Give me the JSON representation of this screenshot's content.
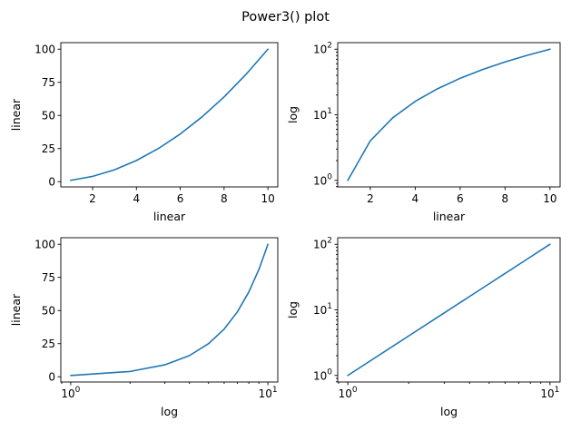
{
  "figure": {
    "title": "Power3() plot"
  },
  "chart_data": [
    {
      "type": "line",
      "xscale": "linear",
      "yscale": "linear",
      "xlabel": "linear",
      "ylabel": "linear",
      "x": [
        1,
        2,
        3,
        4,
        5,
        6,
        7,
        8,
        9,
        10
      ],
      "y": [
        1,
        4,
        9,
        16,
        25,
        36,
        49,
        64,
        81,
        100
      ],
      "color": "#1f77b4",
      "xlim": [
        0.55,
        10.45
      ],
      "ylim": [
        -3.95,
        104.95
      ],
      "xticks": [
        2,
        4,
        6,
        8,
        10
      ],
      "xtick_labels": [
        "2",
        "4",
        "6",
        "8",
        "10"
      ],
      "yticks": [
        0,
        25,
        50,
        75,
        100
      ],
      "ytick_labels": [
        "0",
        "25",
        "50",
        "75",
        "100"
      ]
    },
    {
      "type": "line",
      "xscale": "linear",
      "yscale": "log",
      "xlabel": "linear",
      "ylabel": "log",
      "x": [
        1,
        2,
        3,
        4,
        5,
        6,
        7,
        8,
        9,
        10
      ],
      "y": [
        1,
        4,
        9,
        16,
        25,
        36,
        49,
        64,
        81,
        100
      ],
      "color": "#1f77b4",
      "xlim": [
        0.55,
        10.45
      ],
      "ylim": [
        0.794,
        125.9
      ],
      "xticks": [
        2,
        4,
        6,
        8,
        10
      ],
      "xtick_labels": [
        "2",
        "4",
        "6",
        "8",
        "10"
      ],
      "yticks": [
        1,
        10,
        100
      ],
      "ytick_labels": [
        [
          "10",
          "0"
        ],
        [
          "10",
          "1"
        ],
        [
          "10",
          "2"
        ]
      ]
    },
    {
      "type": "line",
      "xscale": "log",
      "yscale": "linear",
      "xlabel": "log",
      "ylabel": "linear",
      "x": [
        1,
        2,
        3,
        4,
        5,
        6,
        7,
        8,
        9,
        10
      ],
      "y": [
        1,
        4,
        9,
        16,
        25,
        36,
        49,
        64,
        81,
        100
      ],
      "color": "#1f77b4",
      "xlim": [
        0.891,
        11.22
      ],
      "ylim": [
        -3.95,
        104.95
      ],
      "xticks": [
        1,
        10
      ],
      "xtick_labels": [
        [
          "10",
          "0"
        ],
        [
          "10",
          "1"
        ]
      ],
      "yticks": [
        0,
        25,
        50,
        75,
        100
      ],
      "ytick_labels": [
        "0",
        "25",
        "50",
        "75",
        "100"
      ]
    },
    {
      "type": "line",
      "xscale": "log",
      "yscale": "log",
      "xlabel": "log",
      "ylabel": "log",
      "x": [
        1,
        2,
        3,
        4,
        5,
        6,
        7,
        8,
        9,
        10
      ],
      "y": [
        1,
        4,
        9,
        16,
        25,
        36,
        49,
        64,
        81,
        100
      ],
      "color": "#1f77b4",
      "xlim": [
        0.891,
        11.22
      ],
      "ylim": [
        0.794,
        125.9
      ],
      "xticks": [
        1,
        10
      ],
      "xtick_labels": [
        [
          "10",
          "0"
        ],
        [
          "10",
          "1"
        ]
      ],
      "yticks": [
        1,
        10,
        100
      ],
      "ytick_labels": [
        [
          "10",
          "0"
        ],
        [
          "10",
          "1"
        ],
        [
          "10",
          "2"
        ]
      ]
    }
  ]
}
